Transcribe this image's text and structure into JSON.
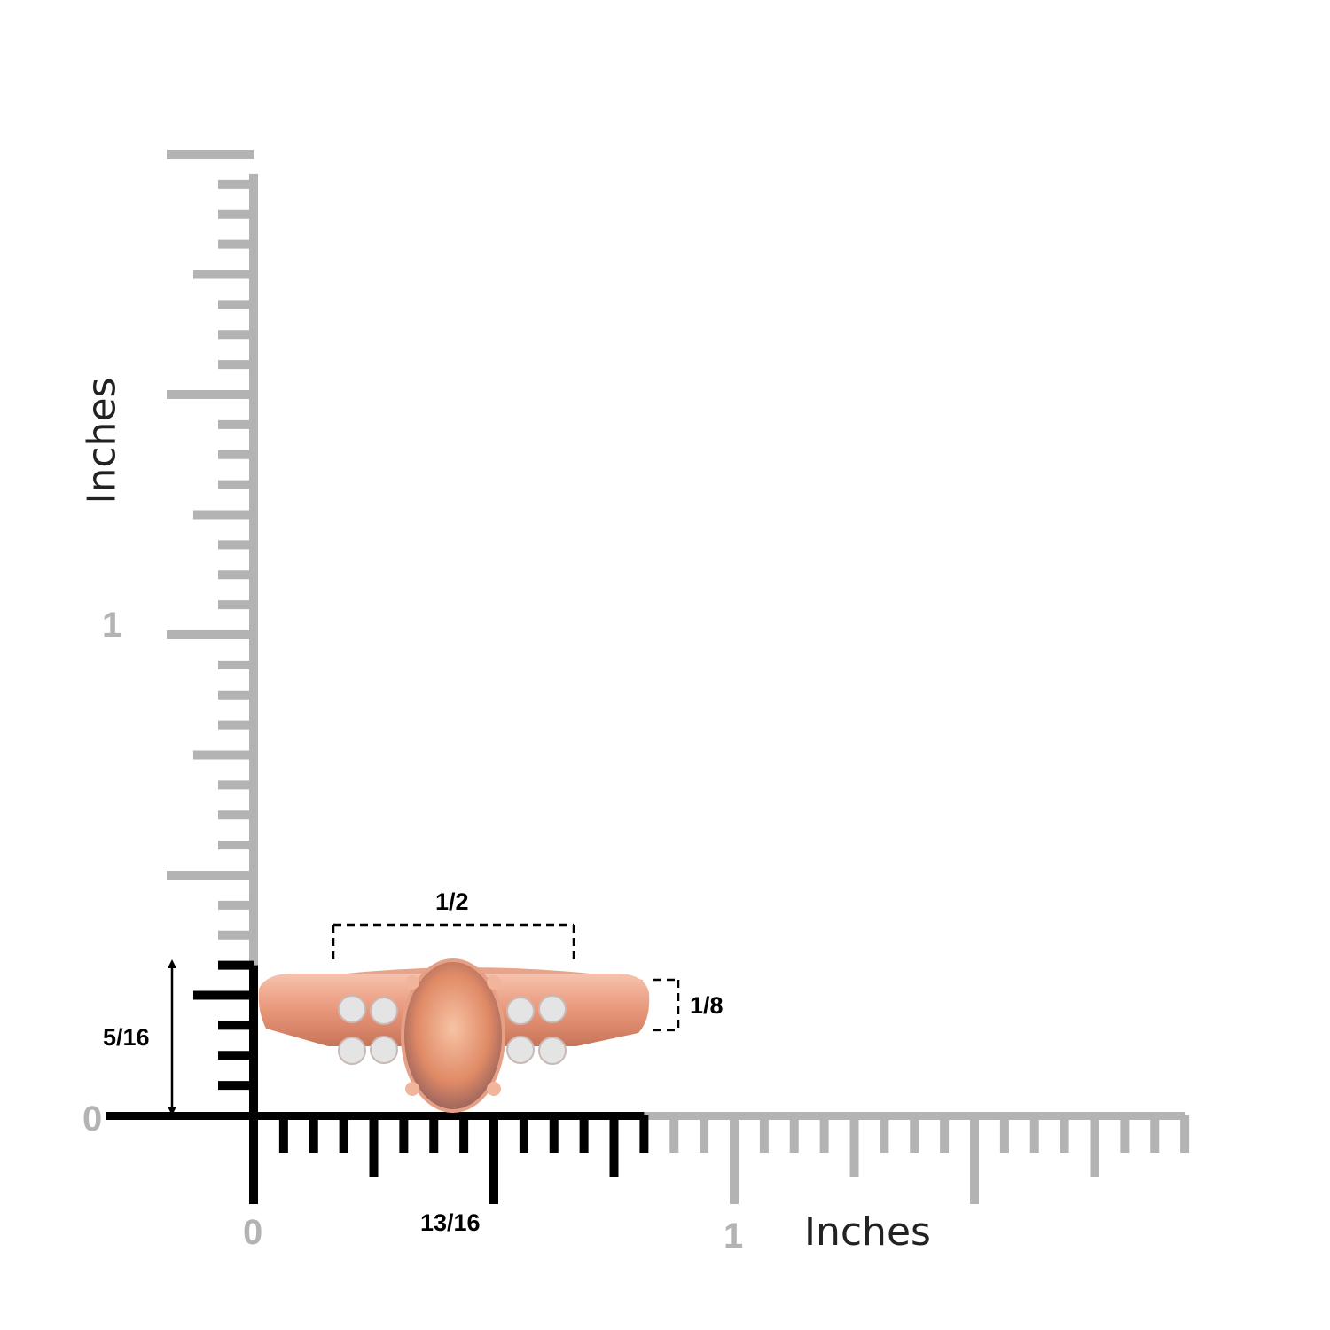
{
  "ruler": {
    "unit_label": "Inches",
    "x_ticks": {
      "zero": "0",
      "one": "1"
    },
    "y_ticks": {
      "zero": "0",
      "one": "1"
    },
    "subdivision": 16,
    "x_max_inches": 1.9375,
    "y_max_inches": 1.9375,
    "highlight_color": "#000000",
    "ruler_color": "#b3b3b3"
  },
  "measurements": {
    "length": {
      "label": "13/16",
      "inches": 0.8125
    },
    "height": {
      "label": "5/16",
      "inches": 0.3125
    },
    "center_stone_width": {
      "label": "1/2",
      "inches": 0.5
    },
    "band_width": {
      "label": "1/8",
      "inches": 0.125
    }
  },
  "product": {
    "metal_color": "#f0a98f",
    "stone_color": "#e8946f",
    "accent_stone_color": "#e6e6e6"
  }
}
